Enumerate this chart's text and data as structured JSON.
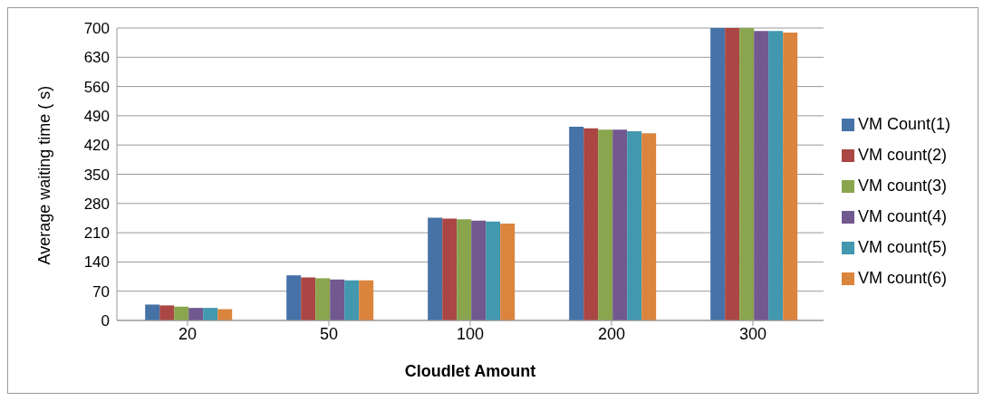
{
  "chart_data": {
    "type": "bar",
    "xlabel": "Cloudlet Amount",
    "ylabel": "Average waiting time ( s)",
    "categories": [
      "20",
      "50",
      "100",
      "200",
      "300"
    ],
    "series": [
      {
        "name": "VM Count(1)",
        "color": "#4572a7",
        "values": [
          38,
          108,
          246,
          464,
          700
        ]
      },
      {
        "name": "VM count(2)",
        "color": "#aa4643",
        "values": [
          36,
          103,
          244,
          460,
          700
        ]
      },
      {
        "name": "VM count(3)",
        "color": "#89a54e",
        "values": [
          33,
          101,
          242,
          457,
          700
        ]
      },
      {
        "name": "VM count(4)",
        "color": "#71588f",
        "values": [
          30,
          98,
          239,
          457,
          693
        ]
      },
      {
        "name": "VM count(5)",
        "color": "#4198af",
        "values": [
          30,
          96,
          237,
          453,
          693
        ]
      },
      {
        "name": "VM count(6)",
        "color": "#db843d",
        "values": [
          27,
          96,
          232,
          448,
          689
        ]
      }
    ],
    "ylim": [
      0,
      700
    ],
    "yticks": [
      0,
      70,
      140,
      210,
      280,
      350,
      420,
      490,
      560,
      630,
      700
    ],
    "grid": "y",
    "legend": "right"
  }
}
